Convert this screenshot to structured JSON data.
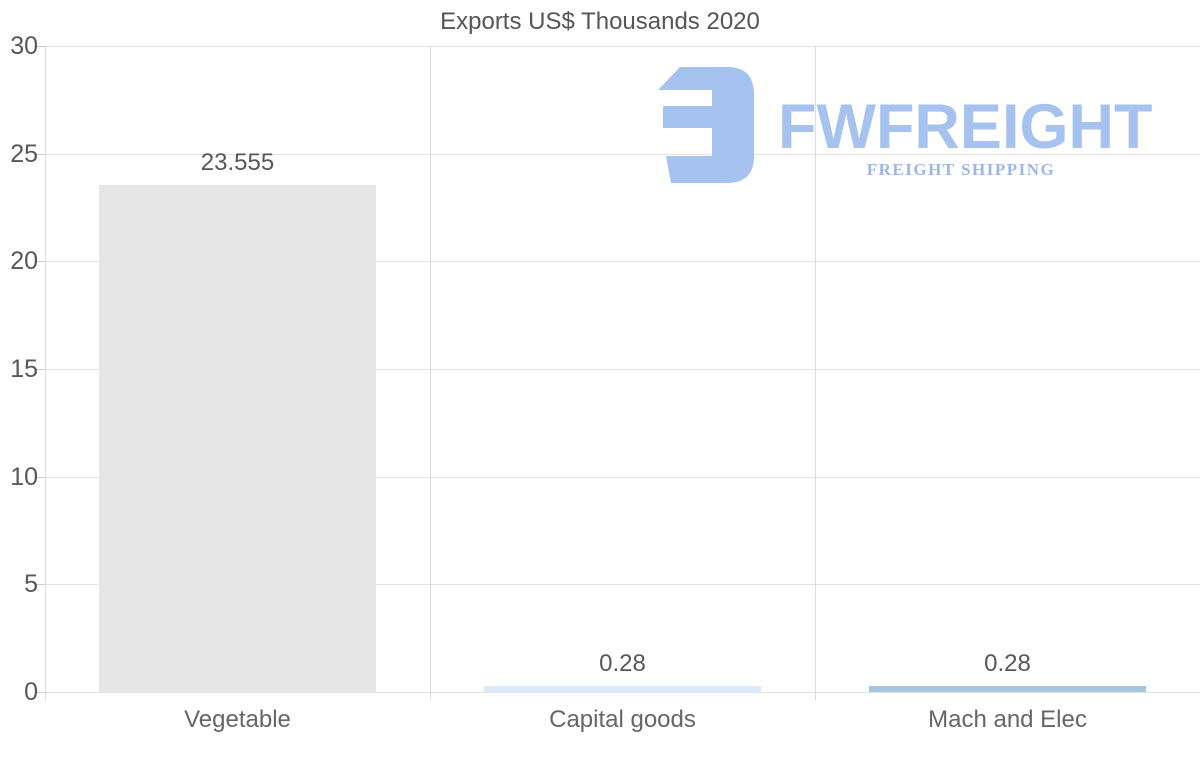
{
  "title": "Exports US$ Thousands 2020",
  "watermark": {
    "brand": "FWFREIGHT",
    "tagline": "FREIGHT SHIPPING",
    "brand_color": "#a6c2ee",
    "tagline_color": "#9db6e5"
  },
  "chart_data": {
    "type": "bar",
    "title": "Exports US$ Thousands 2020",
    "categories": [
      "Vegetable",
      "Capital goods",
      "Mach and Elec"
    ],
    "values": [
      23.555,
      0.28,
      0.28
    ],
    "value_labels": [
      "23.555",
      "0.28",
      "0.28"
    ],
    "bar_colors": [
      "#e6e6e6",
      "#dce9f8",
      "#a3c6e3"
    ],
    "xlabel": "",
    "ylabel": "",
    "ylim": [
      0,
      30
    ],
    "yticks": [
      0,
      5,
      10,
      15,
      20,
      25,
      30
    ],
    "grid": true,
    "legend": false
  },
  "colors": {
    "title": "#565656",
    "tick_label": "#58585a",
    "category_label": "#666666",
    "value_label": "#58585a",
    "gridline": "#e4e4e4",
    "axis_line": "#dcdcdc",
    "background": "#ffffff"
  }
}
